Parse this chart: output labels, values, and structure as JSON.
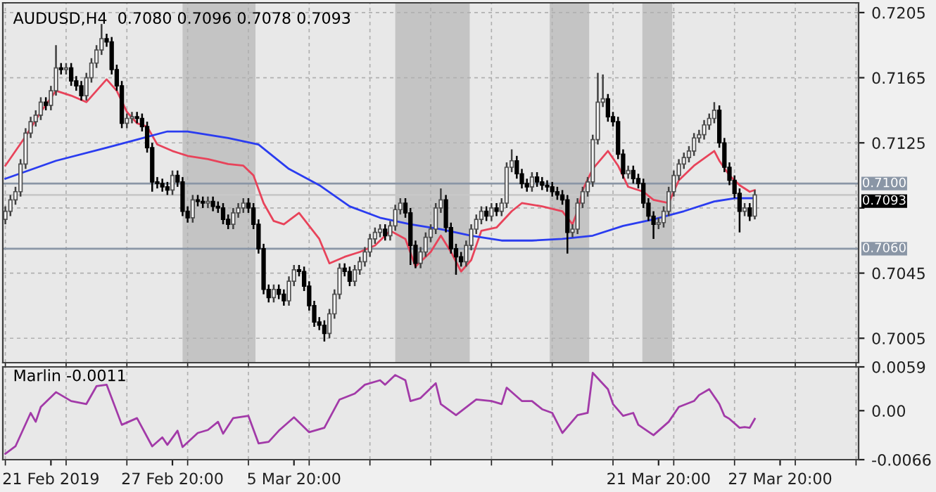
{
  "chart_data": [
    {
      "type": "candlestick",
      "title": "AUDUSD,H4  0.7080 0.7096 0.7078 0.7093",
      "categories": [
        null,
        null,
        null,
        null,
        null,
        null,
        null,
        null,
        null,
        null,
        null,
        null,
        null,
        null,
        null,
        null,
        null,
        null,
        null,
        null,
        null,
        null,
        null,
        null,
        null,
        null,
        null,
        null,
        null,
        null,
        null,
        null,
        null,
        null,
        null,
        null,
        null,
        null,
        null,
        null,
        null,
        null,
        null,
        null,
        null,
        null,
        null,
        null,
        null,
        null,
        null,
        null,
        null,
        null,
        null,
        null,
        null,
        null,
        null,
        null,
        null,
        null,
        null,
        null,
        null,
        null,
        null,
        null,
        null,
        null,
        null,
        null,
        null,
        null,
        null,
        null,
        null,
        null,
        null,
        null,
        null,
        null,
        null,
        null,
        null,
        null,
        null,
        null,
        null,
        null,
        null,
        null,
        null,
        null,
        null,
        null,
        null,
        null,
        null,
        null,
        null,
        null,
        null,
        null,
        null,
        null,
        null,
        null,
        null,
        null,
        null,
        null,
        null,
        null,
        null,
        null,
        null,
        null,
        null,
        null,
        null,
        null,
        null,
        null,
        null,
        null,
        null,
        null,
        null,
        null,
        null,
        null,
        null,
        null,
        null,
        null,
        null,
        null,
        null,
        null,
        null,
        null,
        null,
        null,
        null,
        null,
        null,
        null,
        null,
        null,
        null,
        null,
        null,
        null,
        null,
        null,
        null,
        null,
        null,
        null,
        null,
        null,
        null,
        null,
        null,
        null,
        null,
        null,
        null
      ],
      "ohlc": [
        [
          0.7078,
          0.7086,
          0.7075,
          0.7083
        ],
        [
          0.7083,
          0.7093,
          0.708,
          0.709
        ],
        [
          0.709,
          0.7098,
          0.7087,
          0.7095
        ],
        [
          0.7095,
          0.7115,
          0.7092,
          0.7112
        ],
        [
          0.7112,
          0.7134,
          0.7109,
          0.7131
        ],
        [
          0.7131,
          0.7141,
          0.7128,
          0.7138
        ],
        [
          0.7138,
          0.7145,
          0.7135,
          0.7142
        ],
        [
          0.7142,
          0.7153,
          0.7139,
          0.715
        ],
        [
          0.715,
          0.7153,
          0.7145,
          0.7148
        ],
        [
          0.7148,
          0.716,
          0.7145,
          0.7157
        ],
        [
          0.7157,
          0.7185,
          0.7154,
          0.7171
        ],
        [
          0.7171,
          0.7174,
          0.7167,
          0.717
        ],
        [
          0.717,
          0.7174,
          0.7167,
          0.7171
        ],
        [
          0.7171,
          0.7174,
          0.716,
          0.7163
        ],
        [
          0.7163,
          0.7166,
          0.7157,
          0.716
        ],
        [
          0.716,
          0.7163,
          0.7151,
          0.7154
        ],
        [
          0.7154,
          0.7168,
          0.7151,
          0.7165
        ],
        [
          0.7165,
          0.7177,
          0.7162,
          0.7174
        ],
        [
          0.7174,
          0.7185,
          0.7171,
          0.7182
        ],
        [
          0.7182,
          0.7198,
          0.7179,
          0.7189
        ],
        [
          0.7189,
          0.7192,
          0.7184,
          0.7187
        ],
        [
          0.7187,
          0.719,
          0.7167,
          0.717
        ],
        [
          0.717,
          0.7173,
          0.7157,
          0.716
        ],
        [
          0.716,
          0.7163,
          0.7134,
          0.7137
        ],
        [
          0.7137,
          0.7143,
          0.7134,
          0.714
        ],
        [
          0.714,
          0.7144,
          0.7137,
          0.7141
        ],
        [
          0.7141,
          0.7144,
          0.7137,
          0.714
        ],
        [
          0.714,
          0.7143,
          0.7132,
          0.7135
        ],
        [
          0.7135,
          0.7138,
          0.7119,
          0.7122
        ],
        [
          0.7122,
          0.7125,
          0.7095,
          0.7101
        ],
        [
          0.7101,
          0.7104,
          0.7097,
          0.71
        ],
        [
          0.71,
          0.7103,
          0.7095,
          0.7098
        ],
        [
          0.7098,
          0.7101,
          0.7093,
          0.7096
        ],
        [
          0.7096,
          0.7108,
          0.7093,
          0.7105
        ],
        [
          0.7105,
          0.7108,
          0.7098,
          0.7101
        ],
        [
          0.7101,
          0.7104,
          0.708,
          0.7083
        ],
        [
          0.7083,
          0.7086,
          0.7076,
          0.7079
        ],
        [
          0.7079,
          0.7093,
          0.7076,
          0.709
        ],
        [
          0.709,
          0.7093,
          0.7086,
          0.7089
        ],
        [
          0.7089,
          0.7092,
          0.7085,
          0.7088
        ],
        [
          0.7088,
          0.7092,
          0.7085,
          0.7089
        ],
        [
          0.7089,
          0.7092,
          0.7083,
          0.7086
        ],
        [
          0.7086,
          0.7089,
          0.7082,
          0.7085
        ],
        [
          0.7085,
          0.7088,
          0.7075,
          0.7078
        ],
        [
          0.7078,
          0.7081,
          0.7072,
          0.7075
        ],
        [
          0.7075,
          0.7085,
          0.7072,
          0.7082
        ],
        [
          0.7082,
          0.7088,
          0.7079,
          0.7085
        ],
        [
          0.7085,
          0.7091,
          0.7082,
          0.7088
        ],
        [
          0.7088,
          0.7091,
          0.7082,
          0.7085
        ],
        [
          0.7085,
          0.7088,
          0.7072,
          0.7075
        ],
        [
          0.7075,
          0.7078,
          0.7057,
          0.706
        ],
        [
          0.706,
          0.7063,
          0.7032,
          0.7035
        ],
        [
          0.7035,
          0.7038,
          0.7027,
          0.703
        ],
        [
          0.703,
          0.7038,
          0.7027,
          0.7035
        ],
        [
          0.7035,
          0.7038,
          0.7029,
          0.7032
        ],
        [
          0.7032,
          0.7035,
          0.7025,
          0.7028
        ],
        [
          0.7028,
          0.7043,
          0.7025,
          0.704
        ],
        [
          0.704,
          0.705,
          0.7037,
          0.7047
        ],
        [
          0.7047,
          0.705,
          0.7043,
          0.7046
        ],
        [
          0.7046,
          0.7049,
          0.7034,
          0.7037
        ],
        [
          0.7037,
          0.704,
          0.7022,
          0.7025
        ],
        [
          0.7025,
          0.7028,
          0.7012,
          0.7015
        ],
        [
          0.7015,
          0.7018,
          0.701,
          0.7013
        ],
        [
          0.7013,
          0.7016,
          0.7003,
          0.7008
        ],
        [
          0.7008,
          0.7023,
          0.7005,
          0.702
        ],
        [
          0.702,
          0.7035,
          0.7017,
          0.7032
        ],
        [
          0.7032,
          0.7051,
          0.7029,
          0.7048
        ],
        [
          0.7048,
          0.7051,
          0.7043,
          0.7046
        ],
        [
          0.7046,
          0.7049,
          0.7037,
          0.704
        ],
        [
          0.704,
          0.705,
          0.7037,
          0.7047
        ],
        [
          0.7047,
          0.7055,
          0.7044,
          0.7052
        ],
        [
          0.7052,
          0.7061,
          0.7049,
          0.7058
        ],
        [
          0.7058,
          0.7069,
          0.7055,
          0.7066
        ],
        [
          0.7066,
          0.7073,
          0.7063,
          0.707
        ],
        [
          0.707,
          0.7075,
          0.7067,
          0.7072
        ],
        [
          0.7072,
          0.7075,
          0.7065,
          0.7068
        ],
        [
          0.7068,
          0.7077,
          0.7065,
          0.7074
        ],
        [
          0.7074,
          0.7087,
          0.7071,
          0.7084
        ],
        [
          0.7084,
          0.7091,
          0.7081,
          0.7088
        ],
        [
          0.7088,
          0.7091,
          0.7079,
          0.7082
        ],
        [
          0.7082,
          0.7085,
          0.705,
          0.7062
        ],
        [
          0.7062,
          0.7065,
          0.7048,
          0.7051
        ],
        [
          0.7051,
          0.7061,
          0.7048,
          0.7058
        ],
        [
          0.7058,
          0.707,
          0.7055,
          0.7067
        ],
        [
          0.7067,
          0.7075,
          0.7064,
          0.7072
        ],
        [
          0.7072,
          0.7088,
          0.7069,
          0.7085
        ],
        [
          0.7085,
          0.7097,
          0.7082,
          0.709
        ],
        [
          0.709,
          0.7093,
          0.707,
          0.7073
        ],
        [
          0.7073,
          0.7076,
          0.7057,
          0.706
        ],
        [
          0.706,
          0.7063,
          0.7044,
          0.7055
        ],
        [
          0.7055,
          0.7058,
          0.7049,
          0.7052
        ],
        [
          0.7052,
          0.7065,
          0.7049,
          0.7062
        ],
        [
          0.7062,
          0.7075,
          0.7059,
          0.7072
        ],
        [
          0.7072,
          0.7081,
          0.7069,
          0.7078
        ],
        [
          0.7078,
          0.7086,
          0.7075,
          0.7083
        ],
        [
          0.7083,
          0.7086,
          0.7077,
          0.708
        ],
        [
          0.708,
          0.7088,
          0.7077,
          0.7085
        ],
        [
          0.7085,
          0.7088,
          0.708,
          0.7083
        ],
        [
          0.7083,
          0.7091,
          0.708,
          0.7088
        ],
        [
          0.7088,
          0.7113,
          0.7085,
          0.711
        ],
        [
          0.711,
          0.7121,
          0.7107,
          0.7114
        ],
        [
          0.7114,
          0.7117,
          0.7103,
          0.7106
        ],
        [
          0.7106,
          0.7109,
          0.7097,
          0.71
        ],
        [
          0.71,
          0.7103,
          0.7095,
          0.7098
        ],
        [
          0.7098,
          0.7107,
          0.7095,
          0.7104
        ],
        [
          0.7104,
          0.7107,
          0.7098,
          0.7101
        ],
        [
          0.7101,
          0.7104,
          0.7096,
          0.7099
        ],
        [
          0.7099,
          0.7102,
          0.7095,
          0.7098
        ],
        [
          0.7098,
          0.7101,
          0.7092,
          0.7095
        ],
        [
          0.7095,
          0.7098,
          0.709,
          0.7093
        ],
        [
          0.7093,
          0.7096,
          0.7087,
          0.709
        ],
        [
          0.709,
          0.7093,
          0.7057,
          0.707
        ],
        [
          0.707,
          0.7075,
          0.7067,
          0.7072
        ],
        [
          0.7072,
          0.7091,
          0.7069,
          0.7088
        ],
        [
          0.7088,
          0.7098,
          0.7085,
          0.7095
        ],
        [
          0.7095,
          0.7104,
          0.7092,
          0.7101
        ],
        [
          0.7101,
          0.713,
          0.7098,
          0.7127
        ],
        [
          0.7127,
          0.7168,
          0.7124,
          0.715
        ],
        [
          0.715,
          0.7167,
          0.7147,
          0.7152
        ],
        [
          0.7152,
          0.7155,
          0.7138,
          0.7141
        ],
        [
          0.7141,
          0.7144,
          0.7135,
          0.7138
        ],
        [
          0.7138,
          0.7141,
          0.7115,
          0.7118
        ],
        [
          0.7118,
          0.7121,
          0.7103,
          0.7106
        ],
        [
          0.7106,
          0.7111,
          0.7103,
          0.7108
        ],
        [
          0.7108,
          0.7111,
          0.71,
          0.7103
        ],
        [
          0.7103,
          0.7106,
          0.7097,
          0.71
        ],
        [
          0.71,
          0.7103,
          0.7085,
          0.7088
        ],
        [
          0.7088,
          0.7091,
          0.7077,
          0.708
        ],
        [
          0.708,
          0.7083,
          0.7066,
          0.7075
        ],
        [
          0.7075,
          0.7079,
          0.7072,
          0.7076
        ],
        [
          0.7076,
          0.7086,
          0.7073,
          0.7083
        ],
        [
          0.7083,
          0.7098,
          0.708,
          0.7095
        ],
        [
          0.7095,
          0.7108,
          0.7092,
          0.7105
        ],
        [
          0.7105,
          0.7115,
          0.7102,
          0.7112
        ],
        [
          0.7112,
          0.7119,
          0.7109,
          0.7116
        ],
        [
          0.7116,
          0.7123,
          0.7113,
          0.712
        ],
        [
          0.712,
          0.7131,
          0.7117,
          0.7128
        ],
        [
          0.7128,
          0.7133,
          0.7125,
          0.713
        ],
        [
          0.713,
          0.7139,
          0.7127,
          0.7136
        ],
        [
          0.7136,
          0.7143,
          0.7133,
          0.714
        ],
        [
          0.714,
          0.715,
          0.7137,
          0.7145
        ],
        [
          0.7145,
          0.7148,
          0.7122,
          0.7125
        ],
        [
          0.7125,
          0.7128,
          0.7107,
          0.711
        ],
        [
          0.711,
          0.7113,
          0.7099,
          0.7102
        ],
        [
          0.7102,
          0.7105,
          0.7091,
          0.7094
        ],
        [
          0.7094,
          0.7097,
          0.707,
          0.7083
        ],
        [
          0.7083,
          0.7088,
          0.708,
          0.7085
        ],
        [
          0.7085,
          0.7088,
          0.7077,
          0.708
        ],
        [
          0.708,
          0.7096,
          0.7078,
          0.7093
        ],
        null,
        null,
        null,
        null,
        null,
        null,
        null,
        null,
        null,
        null,
        null,
        null,
        null,
        null,
        null,
        null,
        null,
        null,
        null,
        null
      ],
      "series": [
        {
          "type": "line",
          "color": "#e8435a",
          "values": [
            0.7111,
            null,
            null,
            null,
            0.7129,
            null,
            null,
            0.7144,
            null,
            null,
            0.7157,
            null,
            null,
            0.7154,
            null,
            null,
            0.715,
            null,
            0.7157,
            null,
            0.7164,
            null,
            0.7157,
            null,
            0.7144,
            null,
            0.7137,
            null,
            0.7135,
            null,
            0.7124,
            null,
            null,
            0.712,
            null,
            null,
            0.7117,
            null,
            null,
            null,
            0.7115,
            null,
            null,
            null,
            0.7112,
            null,
            null,
            0.7111,
            null,
            0.7105,
            null,
            0.7088,
            null,
            0.7077,
            null,
            0.7075,
            null,
            null,
            0.7082,
            null,
            null,
            null,
            0.7066,
            null,
            0.7051,
            null,
            null,
            0.7055,
            null,
            null,
            0.7058,
            null,
            null,
            0.7062,
            null,
            null,
            0.7071,
            null,
            null,
            0.7066,
            null,
            0.7049,
            null,
            null,
            0.7058,
            null,
            0.7068,
            null,
            0.7058,
            null,
            0.7046,
            null,
            0.7053,
            null,
            0.7071,
            null,
            null,
            0.7073,
            null,
            null,
            0.7083,
            null,
            0.7088,
            null,
            null,
            null,
            0.7086,
            null,
            null,
            null,
            0.7083,
            null,
            0.7075,
            0.7083,
            0.7096,
            null,
            0.7109,
            null,
            null,
            0.712,
            null,
            0.7111,
            null,
            0.7098,
            null,
            null,
            0.7095,
            null,
            0.709,
            null,
            null,
            0.7088,
            null,
            0.7102,
            null,
            null,
            0.7111,
            null,
            null,
            null,
            0.712,
            0.7114,
            null,
            0.7105,
            null,
            0.7099,
            null,
            0.7095,
            0.7096,
            null,
            null,
            null,
            null,
            null,
            null,
            null,
            null,
            null,
            null,
            null,
            null,
            null,
            null,
            null,
            null,
            null,
            null,
            null,
            null
          ]
        },
        {
          "type": "line",
          "color": "#2a3cf0",
          "values": [
            0.7103,
            null,
            null,
            null,
            null,
            null,
            null,
            null,
            null,
            null,
            0.7114,
            null,
            null,
            null,
            null,
            null,
            null,
            null,
            null,
            null,
            0.7122,
            null,
            null,
            null,
            null,
            null,
            0.7127,
            null,
            null,
            null,
            null,
            null,
            0.7132,
            null,
            null,
            null,
            0.7132,
            null,
            null,
            null,
            null,
            null,
            null,
            null,
            0.7128,
            null,
            null,
            null,
            null,
            null,
            0.7124,
            null,
            null,
            null,
            null,
            null,
            0.7109,
            null,
            null,
            null,
            null,
            null,
            0.7099,
            null,
            null,
            null,
            null,
            null,
            0.7086,
            null,
            null,
            null,
            null,
            null,
            0.7079,
            null,
            null,
            null,
            null,
            null,
            0.7075,
            null,
            null,
            null,
            null,
            null,
            0.7072,
            null,
            null,
            null,
            null,
            null,
            0.7068,
            null,
            null,
            null,
            null,
            null,
            0.7065,
            null,
            null,
            null,
            null,
            null,
            0.7065,
            null,
            null,
            null,
            null,
            null,
            0.7066,
            null,
            null,
            null,
            null,
            null,
            0.7068,
            null,
            null,
            null,
            null,
            null,
            0.7074,
            null,
            null,
            null,
            null,
            null,
            0.7078,
            null,
            null,
            null,
            null,
            null,
            0.7083,
            null,
            null,
            null,
            null,
            null,
            0.7089,
            null,
            null,
            null,
            0.7091,
            null,
            null,
            null,
            0.7091,
            null,
            null,
            null,
            null,
            null,
            null,
            null,
            null,
            null,
            null,
            null,
            null,
            null,
            null,
            null,
            null,
            null,
            null,
            null,
            null
          ]
        }
      ],
      "ylim": [
        0.699,
        0.7211
      ],
      "yticks": [
        0.7205,
        0.7165,
        0.7125,
        {
          "value": 0.7085,
          "label": null
        },
        0.7045,
        0.7005
      ],
      "ref_lines": [
        {
          "axis": "y",
          "value": 0.71,
          "label": "0.7100",
          "color": "#8a96a6"
        },
        {
          "axis": "y",
          "value": 0.706,
          "label": "0.7060",
          "color": "#8a96a6"
        },
        {
          "axis": "y",
          "value": 0.7093,
          "label": "0.7093",
          "color": "#c8c8c8"
        }
      ],
      "grid": true,
      "tick_labels": "y"
    },
    {
      "type": "line",
      "title": "Marlin -0.0011",
      "categories": [
        null,
        null,
        null,
        null,
        null,
        null,
        null,
        null,
        null,
        "21 Feb 2019",
        null,
        null,
        null,
        null,
        null,
        null,
        null,
        null,
        null,
        null,
        null,
        null,
        null,
        null,
        null,
        null,
        null,
        null,
        null,
        null,
        null,
        null,
        null,
        "27 Feb 20:00",
        null,
        null,
        null,
        null,
        null,
        null,
        null,
        null,
        null,
        null,
        null,
        null,
        null,
        null,
        null,
        null,
        null,
        null,
        null,
        null,
        null,
        null,
        null,
        "5 Mar 20:00",
        null,
        null,
        null,
        null,
        null,
        null,
        null,
        null,
        null,
        null,
        null,
        null,
        null,
        null,
        null,
        null,
        null,
        null,
        null,
        null,
        null,
        null,
        null,
        null,
        null,
        null,
        null,
        null,
        null,
        null,
        null,
        null,
        null,
        null,
        null,
        null,
        null,
        null,
        null,
        null,
        null,
        null,
        null,
        null,
        null,
        null,
        null,
        null,
        null,
        null,
        null,
        null,
        null,
        null,
        null,
        null,
        null,
        null,
        null,
        null,
        null,
        null,
        null,
        null,
        null,
        null,
        null,
        null,
        null,
        null,
        null,
        "21 Mar 20:00",
        null,
        null,
        null,
        null,
        null,
        null,
        null,
        null,
        null,
        null,
        null,
        null,
        null,
        null,
        null,
        null,
        null,
        null,
        null,
        null,
        null,
        null,
        null,
        "27 Mar 20:00",
        null,
        null,
        null,
        null,
        null,
        null,
        null,
        null,
        null,
        null,
        null,
        null,
        null,
        null,
        null
      ],
      "series": [
        {
          "color": "#a23aa8",
          "values": [
            -0.0058,
            null,
            -0.0048,
            null,
            null,
            -0.0003,
            -0.0015,
            0.0005,
            null,
            null,
            0.0025,
            null,
            null,
            0.0013,
            null,
            null,
            0.0009,
            null,
            0.0033,
            null,
            0.0035,
            null,
            null,
            -0.0019,
            null,
            null,
            -0.001,
            null,
            null,
            -0.0048,
            null,
            -0.0036,
            -0.0046,
            null,
            -0.0027,
            -0.0049,
            null,
            null,
            -0.003,
            null,
            -0.0026,
            null,
            -0.0015,
            -0.0031,
            null,
            -0.001,
            null,
            null,
            -0.0007,
            null,
            -0.0044,
            null,
            -0.0042,
            null,
            -0.0027,
            null,
            null,
            -0.0009,
            null,
            null,
            -0.0029,
            null,
            null,
            -0.0023,
            null,
            null,
            0.0015,
            null,
            null,
            0.0023,
            null,
            0.0035,
            null,
            null,
            0.0041,
            0.0035,
            null,
            0.0048,
            null,
            0.0041,
            0.0013,
            null,
            0.0017,
            null,
            null,
            0.0037,
            0.0009,
            null,
            null,
            -0.0006,
            null,
            null,
            null,
            0.0015,
            null,
            null,
            0.0013,
            null,
            0.0009,
            0.0031,
            null,
            null,
            0.0013,
            null,
            0.0013,
            null,
            0.0002,
            null,
            -0.0003,
            null,
            -0.003,
            null,
            null,
            -0.0006,
            null,
            -0.0003,
            0.0051,
            null,
            null,
            0.0029,
            0.0009,
            null,
            -0.0007,
            null,
            -0.0003,
            -0.0019,
            null,
            null,
            -0.0033,
            null,
            null,
            -0.0015,
            null,
            0.0005,
            null,
            null,
            0.0013,
            0.0021,
            null,
            0.0029,
            null,
            0.0009,
            -0.0007,
            -0.0011,
            null,
            -0.0023,
            -0.0022,
            -0.0023,
            -0.0011,
            null,
            null,
            null,
            null,
            null,
            null,
            null,
            null,
            null,
            null,
            null,
            null,
            null,
            null,
            null,
            null,
            null,
            null,
            null,
            null
          ]
        }
      ],
      "ylim": [
        -0.0066,
        0.0059
      ],
      "yticks": [
        {
          "value": 0.0059,
          "label": "0.0059"
        },
        {
          "value": 0.0,
          "label": "0.00"
        },
        {
          "value": -0.0066,
          "label": "-0.0066"
        }
      ],
      "grid": "x"
    }
  ]
}
